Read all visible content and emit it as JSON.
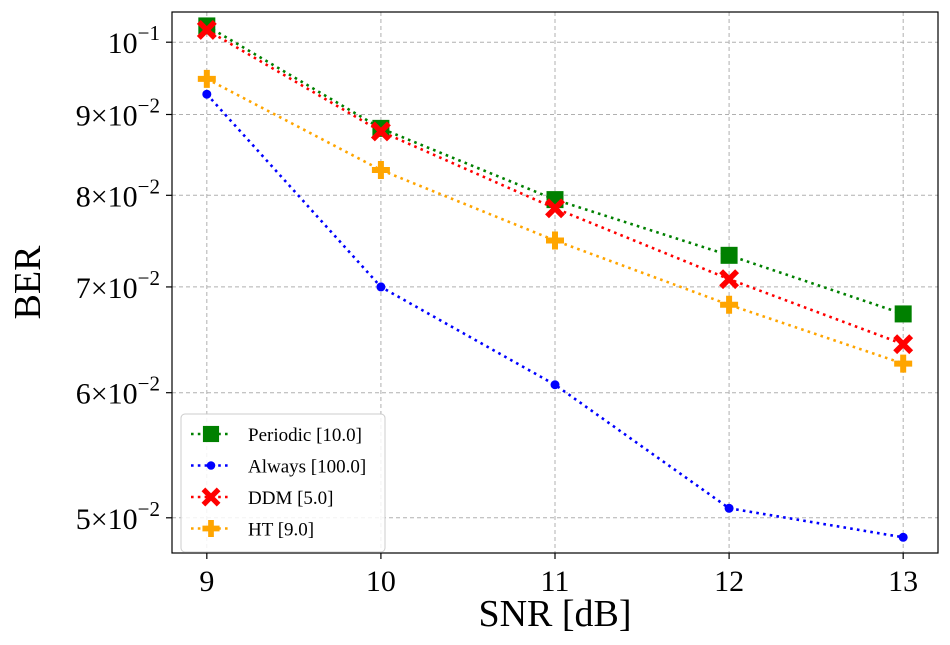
{
  "chart_data": {
    "type": "line",
    "xlabel": "SNR [dB]",
    "ylabel": "BER",
    "x": [
      9,
      10,
      11,
      12,
      13
    ],
    "x_ticks": [
      9,
      10,
      11,
      12,
      13
    ],
    "x_tick_labels": [
      "9",
      "10",
      "11",
      "12",
      "13"
    ],
    "xlim": [
      8.8,
      13.2
    ],
    "ylim": [
      0.0475,
      0.1045
    ],
    "y_scale": "log",
    "y_ticks": [
      {
        "value": 0.1,
        "mantissa": "",
        "base": "10",
        "exp": "−1"
      },
      {
        "value": 0.09,
        "mantissa": "9×",
        "base": "10",
        "exp": "−2"
      },
      {
        "value": 0.08,
        "mantissa": "8×",
        "base": "10",
        "exp": "−2"
      },
      {
        "value": 0.07,
        "mantissa": "7×",
        "base": "10",
        "exp": "−2"
      },
      {
        "value": 0.06,
        "mantissa": "6×",
        "base": "10",
        "exp": "−2"
      },
      {
        "value": 0.05,
        "mantissa": "5×",
        "base": "10",
        "exp": "−2"
      }
    ],
    "grid": true,
    "legend_position": "lower-left",
    "series": [
      {
        "name": "Periodic [10.0]",
        "color": "#008000",
        "marker": "square",
        "values": [
          0.1024,
          0.0882,
          0.0795,
          0.0733,
          0.0673
        ]
      },
      {
        "name": "Always [100.0]",
        "color": "#0000ff",
        "marker": "circle",
        "values": [
          0.0927,
          0.07,
          0.0607,
          0.0507,
          0.0486
        ]
      },
      {
        "name": "DDM [5.0]",
        "color": "#ff0000",
        "marker": "x",
        "values": [
          0.1018,
          0.0878,
          0.0785,
          0.0708,
          0.0644
        ]
      },
      {
        "name": "HT [9.0]",
        "color": "#ffa500",
        "marker": "plus",
        "values": [
          0.0948,
          0.083,
          0.0749,
          0.0682,
          0.0626
        ]
      }
    ]
  }
}
